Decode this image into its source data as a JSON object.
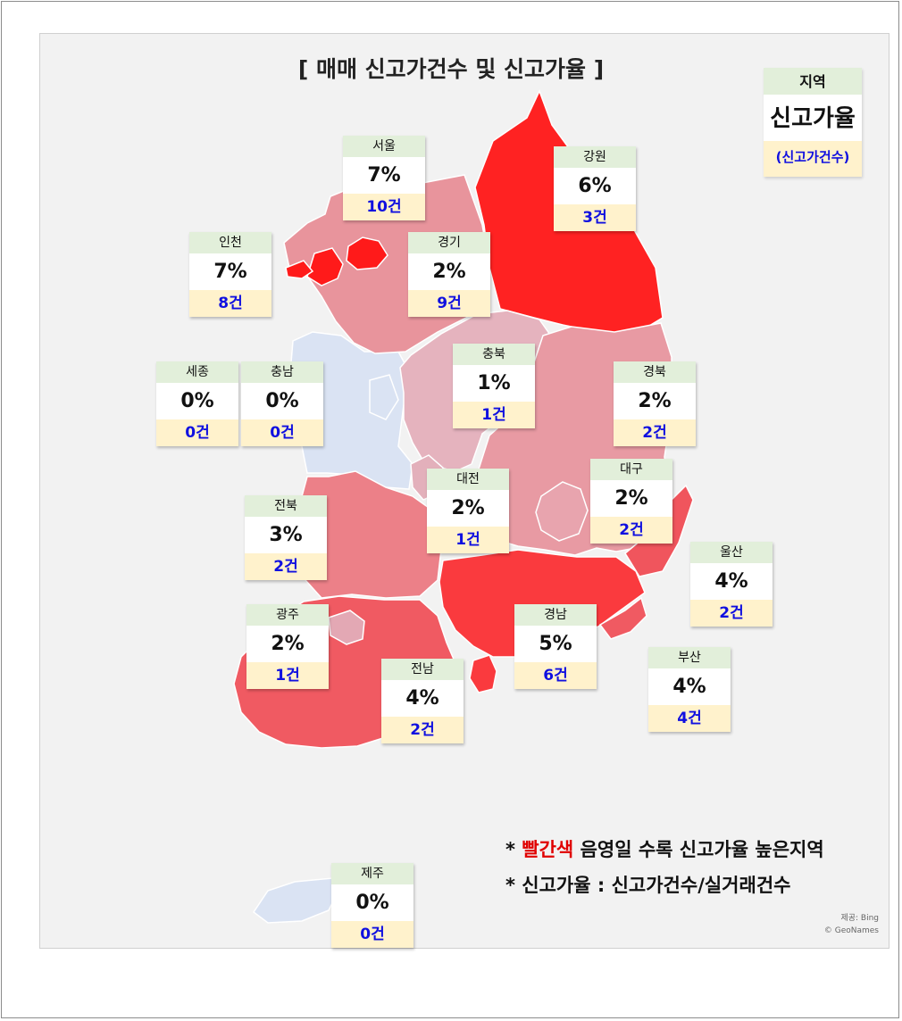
{
  "title": "[ 매매 신고가건수 및 신고가율 ]",
  "legend": {
    "region": "지역",
    "rate": "신고가율",
    "count": "(신고가건수)"
  },
  "regions": [
    {
      "id": "seoul",
      "name": "서울",
      "rate_pct": 7,
      "count": 10,
      "rate": "7%",
      "count_label": "10건",
      "color": "#ff1a1a"
    },
    {
      "id": "gangwon",
      "name": "강원",
      "rate_pct": 6,
      "count": 3,
      "rate": "6%",
      "count_label": "3건",
      "color": "#ff2222"
    },
    {
      "id": "incheon",
      "name": "인천",
      "rate_pct": 7,
      "count": 8,
      "rate": "7%",
      "count_label": "8건",
      "color": "#ff1a1a"
    },
    {
      "id": "gyeonggi",
      "name": "경기",
      "rate_pct": 2,
      "count": 9,
      "rate": "2%",
      "count_label": "9건",
      "color": "#e8949c"
    },
    {
      "id": "sejong",
      "name": "세종",
      "rate_pct": 0,
      "count": 0,
      "rate": "0%",
      "count_label": "0건",
      "color": "#dae3f3"
    },
    {
      "id": "chungnam",
      "name": "충남",
      "rate_pct": 0,
      "count": 0,
      "rate": "0%",
      "count_label": "0건",
      "color": "#dae3f3"
    },
    {
      "id": "chungbuk",
      "name": "충북",
      "rate_pct": 1,
      "count": 1,
      "rate": "1%",
      "count_label": "1건",
      "color": "#e5b3be"
    },
    {
      "id": "gyeongbuk",
      "name": "경북",
      "rate_pct": 2,
      "count": 2,
      "rate": "2%",
      "count_label": "2건",
      "color": "#e89aa3"
    },
    {
      "id": "daegu",
      "name": "대구",
      "rate_pct": 2,
      "count": 2,
      "rate": "2%",
      "count_label": "2건",
      "color": "#e8a4ae"
    },
    {
      "id": "daejeon",
      "name": "대전",
      "rate_pct": 2,
      "count": 1,
      "rate": "2%",
      "count_label": "1건",
      "color": "#e3b0bb"
    },
    {
      "id": "jeonbuk",
      "name": "전북",
      "rate_pct": 3,
      "count": 2,
      "rate": "3%",
      "count_label": "2건",
      "color": "#ec8088"
    },
    {
      "id": "ulsan",
      "name": "울산",
      "rate_pct": 4,
      "count": 2,
      "rate": "4%",
      "count_label": "2건",
      "color": "#f0555d"
    },
    {
      "id": "gwangju",
      "name": "광주",
      "rate_pct": 2,
      "count": 1,
      "rate": "2%",
      "count_label": "1건",
      "color": "#e3a8b4"
    },
    {
      "id": "gyeongnam",
      "name": "경남",
      "rate_pct": 5,
      "count": 6,
      "rate": "5%",
      "count_label": "6건",
      "color": "#fa3a3e"
    },
    {
      "id": "jeonnam",
      "name": "전남",
      "rate_pct": 4,
      "count": 2,
      "rate": "4%",
      "count_label": "2건",
      "color": "#f05a62"
    },
    {
      "id": "busan",
      "name": "부산",
      "rate_pct": 4,
      "count": 4,
      "rate": "4%",
      "count_label": "4건",
      "color": "#f05a62"
    },
    {
      "id": "jeju",
      "name": "제주",
      "rate_pct": 0,
      "count": 0,
      "rate": "0%",
      "count_label": "0건",
      "color": "#dae3f3"
    }
  ],
  "notes": {
    "line1_prefix": "* ",
    "line1_red": "빨간색",
    "line1_rest": " 음영일 수록 신고가율 높은지역",
    "line2": "* 신고가율 : 신고가건수/실거래건수"
  },
  "credit": {
    "line1": "제공: Bing",
    "line2": "© GeoNames"
  }
}
